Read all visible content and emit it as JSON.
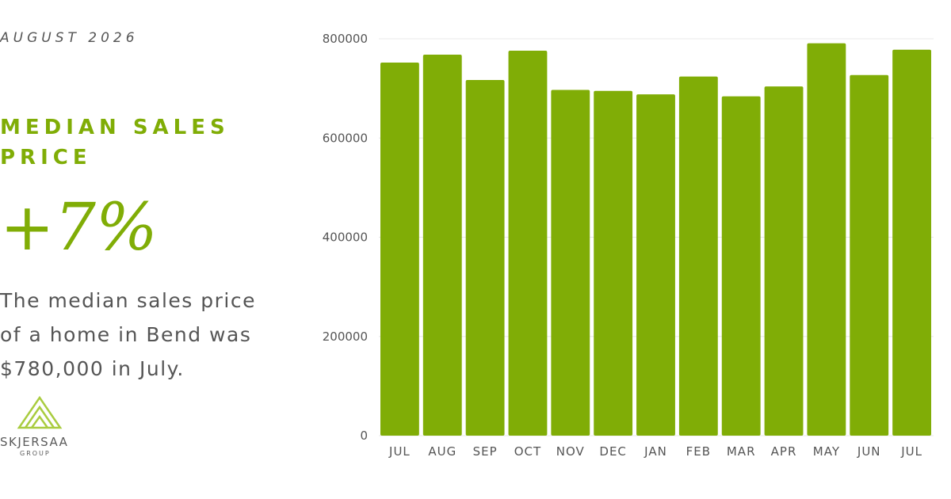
{
  "date_label": "AUGUST 2026",
  "headline": "MEDIAN SALES PRICE",
  "change_value": "+7%",
  "summary": "The median sales price of a home in Bend was $780,000 in July.",
  "brand": {
    "name": "SKJERSAA",
    "sub": "GROUP",
    "logo_icon": "triangle-logo-icon"
  },
  "colors": {
    "accent": "#80ad06",
    "text": "#555555",
    "grid": "#e8e8e8"
  },
  "chart_data": {
    "type": "bar",
    "categories": [
      "JUL",
      "AUG",
      "SEP",
      "OCT",
      "NOV",
      "DEC",
      "JAN",
      "FEB",
      "MAR",
      "APR",
      "MAY",
      "JUN",
      "JUL"
    ],
    "values": [
      752000,
      768000,
      717000,
      776000,
      697000,
      695000,
      688000,
      724000,
      684000,
      704000,
      791000,
      727000,
      778000
    ],
    "yticks": [
      "800000",
      "600000",
      "400000",
      "200000",
      "0"
    ],
    "ylim": [
      0,
      800000
    ],
    "grid": true
  }
}
